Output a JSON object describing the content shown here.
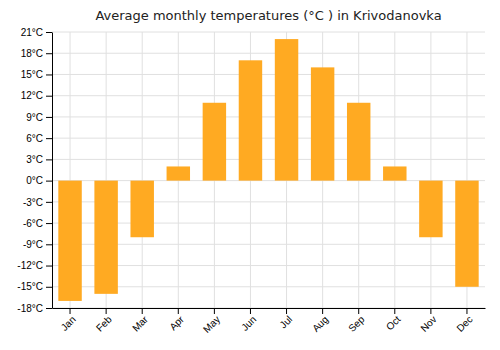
{
  "chart_data": {
    "type": "bar",
    "title": "Average monthly temperatures (°C ) in Krivodanovka",
    "categories": [
      "Jan",
      "Feb",
      "Mar",
      "Apr",
      "May",
      "Jun",
      "Jul",
      "Aug",
      "Sep",
      "Oct",
      "Nov",
      "Dec"
    ],
    "values": [
      -17,
      -16,
      -8,
      2,
      11,
      17,
      20,
      16,
      11,
      2,
      -8,
      -15
    ],
    "color": "#FFAA22",
    "ylim": [
      -18,
      21
    ],
    "yticks": [
      {
        "value": -18,
        "label": "-18°C"
      },
      {
        "value": -15,
        "label": "-15°C"
      },
      {
        "value": -12,
        "label": "-12°C"
      },
      {
        "value": -9,
        "label": "-9°C"
      },
      {
        "value": -6,
        "label": "-6°C"
      },
      {
        "value": -3,
        "label": "-3°C"
      },
      {
        "value": 0,
        "label": "0°C"
      },
      {
        "value": 3,
        "label": "3°C"
      },
      {
        "value": 6,
        "label": "6°C"
      },
      {
        "value": 9,
        "label": "9°C"
      },
      {
        "value": 12,
        "label": "12°C"
      },
      {
        "value": 15,
        "label": "15°C"
      },
      {
        "value": 18,
        "label": "18°C"
      },
      {
        "value": 21,
        "label": "21°C"
      }
    ],
    "grid": true
  }
}
